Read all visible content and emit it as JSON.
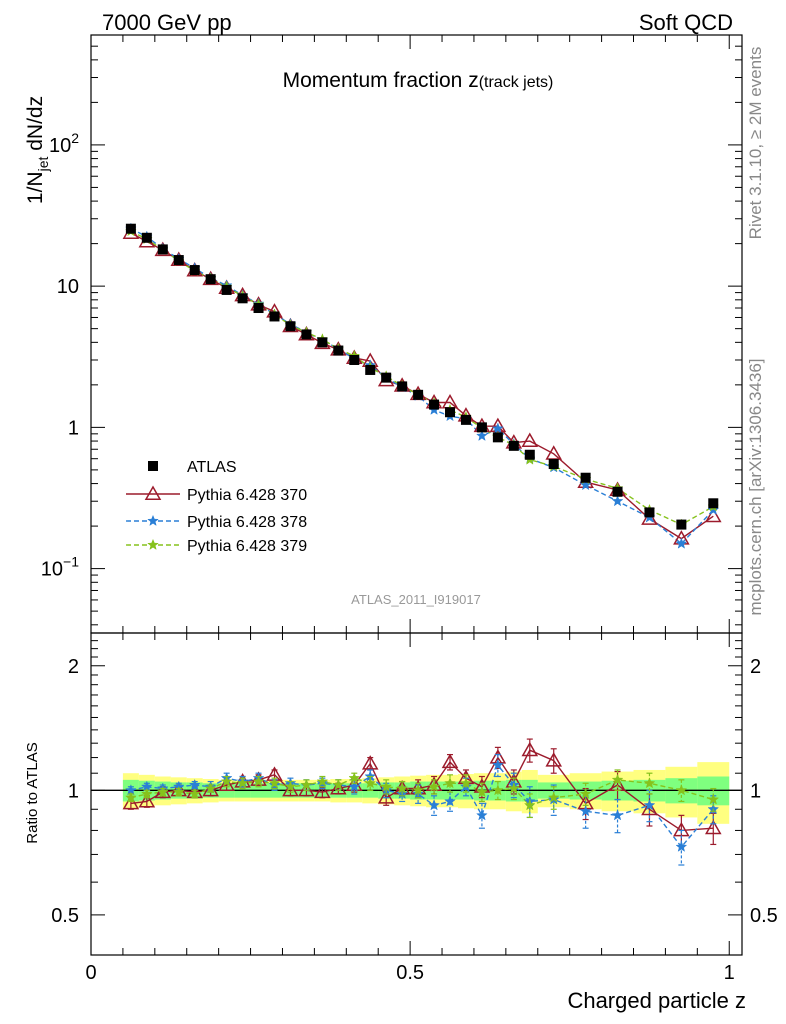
{
  "header": {
    "left": "7000 GeV pp",
    "right": "Soft QCD"
  },
  "side_labels": {
    "rivet": "Rivet 3.1.10, ≥ 2M events",
    "mcplots": "mcplots.cern.ch [arXiv:1306.3436]"
  },
  "chart_data": [
    {
      "type": "scatter",
      "title_main": "Momentum fraction z",
      "title_sub": "(track jets)",
      "ylabel_main": "1/N",
      "ylabel_sub": "jet",
      "ylabel_rest": " dN/dz",
      "analysis_tag": "ATLAS_2011_I919017",
      "y_scale": "log",
      "ylim": [
        0.035,
        600
      ],
      "xlim": [
        0,
        1.02
      ],
      "y_ticks": [
        {
          "value": 0.1,
          "label_base": "10",
          "label_exp": "−1"
        },
        {
          "value": 1,
          "label_base": "1",
          "label_exp": ""
        },
        {
          "value": 10,
          "label_base": "10",
          "label_exp": ""
        },
        {
          "value": 100,
          "label_base": "10",
          "label_exp": "2"
        }
      ],
      "x": [
        0.0625,
        0.0875,
        0.1125,
        0.1375,
        0.1625,
        0.1875,
        0.2125,
        0.2375,
        0.2625,
        0.2875,
        0.3125,
        0.3375,
        0.3625,
        0.3875,
        0.4125,
        0.4375,
        0.4625,
        0.4875,
        0.5125,
        0.5375,
        0.5625,
        0.5875,
        0.6125,
        0.6375,
        0.6625,
        0.6875,
        0.725,
        0.775,
        0.825,
        0.875,
        0.925,
        0.975
      ],
      "series": [
        {
          "name": "ATLAS",
          "color": "#000000",
          "marker": "square",
          "values": [
            25.5,
            22.0,
            18.2,
            15.3,
            13.0,
            11.2,
            9.4,
            8.2,
            7.0,
            6.1,
            5.2,
            4.55,
            4.0,
            3.5,
            3.0,
            2.55,
            2.25,
            1.95,
            1.7,
            1.45,
            1.28,
            1.13,
            1.0,
            0.85,
            0.74,
            0.64,
            0.55,
            0.44,
            0.35,
            0.25,
            0.205,
            0.29
          ]
        },
        {
          "name": "Pythia 6.428 370",
          "color": "#9c1b2c",
          "marker": "triangle",
          "line": "solid",
          "values": [
            23.8,
            20.7,
            18.0,
            15.3,
            12.9,
            11.2,
            9.7,
            8.6,
            7.4,
            6.6,
            5.2,
            4.55,
            3.95,
            3.55,
            3.1,
            2.95,
            2.15,
            1.97,
            1.72,
            1.5,
            1.5,
            1.21,
            1.02,
            1.02,
            0.78,
            0.8,
            0.65,
            0.41,
            0.36,
            0.225,
            0.163,
            0.235
          ]
        },
        {
          "name": "Pythia 6.428 378",
          "color": "#2a7fd6",
          "marker": "star",
          "line": "dashed",
          "values": [
            25.5,
            22.4,
            18.4,
            15.6,
            13.4,
            11.4,
            10.1,
            8.6,
            7.5,
            6.3,
            5.4,
            4.7,
            4.15,
            3.6,
            3.05,
            2.75,
            2.25,
            1.92,
            1.67,
            1.33,
            1.2,
            1.15,
            0.87,
            0.98,
            0.76,
            0.6,
            0.52,
            0.39,
            0.3,
            0.23,
            0.15,
            0.26
          ]
        },
        {
          "name": "Pythia 6.428 379",
          "color": "#86c21c",
          "marker": "star",
          "line": "dashed",
          "values": [
            24.5,
            21.5,
            18.1,
            15.1,
            12.8,
            11.3,
            9.9,
            8.5,
            7.4,
            6.3,
            5.3,
            4.7,
            4.2,
            3.6,
            3.2,
            2.65,
            2.3,
            1.97,
            1.7,
            1.48,
            1.33,
            1.18,
            0.99,
            0.85,
            0.75,
            0.59,
            0.53,
            0.43,
            0.37,
            0.26,
            0.205,
            0.275
          ]
        }
      ],
      "legend_position": "lower-left"
    },
    {
      "type": "line",
      "ylabel": "Ratio to ATLAS",
      "xlabel": "Charged particle z",
      "y_scale": "log",
      "ylim": [
        0.4,
        2.4
      ],
      "xlim": [
        0,
        1.02
      ],
      "y_ticks": [
        0.5,
        1,
        2
      ],
      "y_tick_labels": [
        "0.5",
        "1",
        "2"
      ],
      "x_ticks": [
        0,
        0.5,
        1
      ],
      "x_tick_labels": [
        "0",
        "0.5",
        "1"
      ],
      "reference": 1,
      "band_edges": [
        0.05,
        0.075,
        0.1,
        0.125,
        0.15,
        0.175,
        0.2,
        0.225,
        0.25,
        0.275,
        0.3,
        0.325,
        0.35,
        0.375,
        0.4,
        0.425,
        0.45,
        0.475,
        0.5,
        0.525,
        0.55,
        0.575,
        0.6,
        0.625,
        0.65,
        0.675,
        0.7,
        0.75,
        0.8,
        0.85,
        0.9,
        0.95,
        1.0
      ],
      "band_inner": [
        0.06,
        0.055,
        0.05,
        0.045,
        0.045,
        0.04,
        0.04,
        0.04,
        0.04,
        0.04,
        0.04,
        0.04,
        0.04,
        0.04,
        0.04,
        0.04,
        0.045,
        0.045,
        0.05,
        0.05,
        0.05,
        0.05,
        0.055,
        0.055,
        0.06,
        0.06,
        0.045,
        0.05,
        0.055,
        0.06,
        0.07,
        0.08
      ],
      "band_outer": [
        0.1,
        0.09,
        0.08,
        0.075,
        0.07,
        0.065,
        0.06,
        0.06,
        0.06,
        0.06,
        0.06,
        0.06,
        0.06,
        0.065,
        0.065,
        0.07,
        0.075,
        0.08,
        0.085,
        0.09,
        0.09,
        0.095,
        0.1,
        0.1,
        0.11,
        0.12,
        0.09,
        0.1,
        0.11,
        0.12,
        0.14,
        0.17
      ],
      "band_colors": {
        "inner": "#7fff7f",
        "outer": "#ffff80"
      },
      "series": [
        {
          "name": "Pythia 6.428 370",
          "color": "#9c1b2c",
          "marker": "triangle",
          "line": "solid",
          "values": [
            0.93,
            0.94,
            0.99,
            1.0,
            0.99,
            1.0,
            1.03,
            1.05,
            1.06,
            1.09,
            1.0,
            1.0,
            0.99,
            1.01,
            1.03,
            1.16,
            0.96,
            1.01,
            1.01,
            1.03,
            1.17,
            1.07,
            1.02,
            1.2,
            1.05,
            1.25,
            1.18,
            0.93,
            1.03,
            0.9,
            0.8,
            0.81
          ],
          "errors": [
            0.03,
            0.03,
            0.03,
            0.03,
            0.03,
            0.03,
            0.03,
            0.03,
            0.03,
            0.03,
            0.03,
            0.03,
            0.03,
            0.03,
            0.04,
            0.04,
            0.04,
            0.04,
            0.05,
            0.05,
            0.05,
            0.05,
            0.06,
            0.07,
            0.07,
            0.08,
            0.08,
            0.08,
            0.08,
            0.08,
            0.07,
            0.07
          ]
        },
        {
          "name": "Pythia 6.428 378",
          "color": "#2a7fd6",
          "marker": "star",
          "line": "dashed",
          "values": [
            1.0,
            1.02,
            1.01,
            1.02,
            1.03,
            1.02,
            1.07,
            1.05,
            1.07,
            1.03,
            1.04,
            1.03,
            1.04,
            1.03,
            1.02,
            1.08,
            1.0,
            0.98,
            0.98,
            0.92,
            0.94,
            1.02,
            0.87,
            1.15,
            1.03,
            0.94,
            0.95,
            0.89,
            0.87,
            0.92,
            0.73,
            0.9
          ],
          "errors": [
            0.02,
            0.02,
            0.02,
            0.02,
            0.02,
            0.03,
            0.03,
            0.03,
            0.03,
            0.03,
            0.03,
            0.03,
            0.03,
            0.03,
            0.04,
            0.04,
            0.04,
            0.04,
            0.05,
            0.05,
            0.05,
            0.05,
            0.06,
            0.07,
            0.07,
            0.08,
            0.08,
            0.08,
            0.08,
            0.08,
            0.07,
            0.07
          ]
        },
        {
          "name": "Pythia 6.428 379",
          "color": "#86c21c",
          "marker": "star",
          "line": "dashed",
          "values": [
            0.96,
            0.98,
            0.99,
            0.99,
            0.98,
            1.01,
            1.05,
            1.04,
            1.05,
            1.04,
            1.02,
            1.03,
            1.05,
            1.03,
            1.07,
            1.04,
            1.02,
            1.01,
            1.0,
            1.02,
            1.04,
            1.04,
            0.99,
            1.0,
            1.01,
            0.92,
            0.96,
            0.98,
            1.06,
            1.04,
            1.0,
            0.95
          ],
          "errors": [
            0.02,
            0.02,
            0.02,
            0.02,
            0.02,
            0.02,
            0.03,
            0.03,
            0.03,
            0.03,
            0.03,
            0.03,
            0.03,
            0.03,
            0.03,
            0.04,
            0.04,
            0.04,
            0.04,
            0.04,
            0.05,
            0.05,
            0.05,
            0.05,
            0.06,
            0.06,
            0.06,
            0.06,
            0.06,
            0.06,
            0.06,
            0.06
          ]
        }
      ]
    }
  ]
}
